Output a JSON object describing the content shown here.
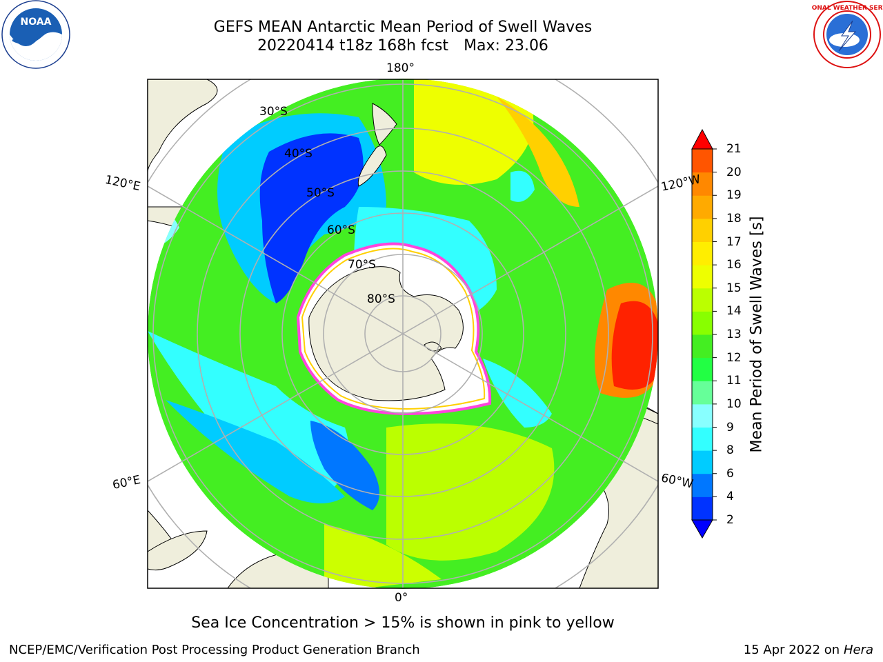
{
  "title": {
    "line1": "GEFS MEAN Antarctic Mean Period of Swell Waves",
    "line2": "20220414 t18z 168h fcst",
    "max_label": "Max: 23.06"
  },
  "logos": {
    "noaa": "NOAA",
    "nws_text": "NATIONAL WEATHER SERVICE"
  },
  "map": {
    "projection": "south-polar-stereographic",
    "longitude_labels": {
      "top": "180°",
      "bottom": "0°",
      "left_upper": "120°E",
      "left_lower": "60°E",
      "right_upper": "120°W",
      "right_lower": "60°W"
    },
    "latitude_labels": [
      "30°S",
      "40°S",
      "50°S",
      "60°S",
      "70°S",
      "80°S"
    ],
    "colors": {
      "land": "#efeedc",
      "ice_edge": "#ff44dd",
      "ice_inner": "#ffd000",
      "grid": "#b0b0b0",
      "no_data": "#ffffff"
    }
  },
  "colorbar": {
    "label": "Mean Period of Swell Waves [s]",
    "ticks": [
      "2",
      "4",
      "6",
      "8",
      "9",
      "10",
      "11",
      "12",
      "13",
      "14",
      "15",
      "16",
      "17",
      "18",
      "19",
      "20",
      "21"
    ],
    "colors": [
      "#0033ff",
      "#0077ff",
      "#00ccff",
      "#33ffff",
      "#88ffff",
      "#66ff99",
      "#22ff44",
      "#44ee22",
      "#88ff00",
      "#bbff00",
      "#eeff00",
      "#ffee00",
      "#ffd000",
      "#ffaa00",
      "#ff8800",
      "#ff5500",
      "#ff2200"
    ],
    "extend_low_color": "#0000ff",
    "extend_high_color": "#ff0000",
    "range": [
      2,
      21
    ]
  },
  "caption": "Sea Ice Concentration > 15% is shown in pink to yellow",
  "footer": {
    "left": "NCEP/EMC/Verification Post Processing Product Generation Branch",
    "right_prefix": "15 Apr 2022 on",
    "right_machine": "Hera"
  }
}
